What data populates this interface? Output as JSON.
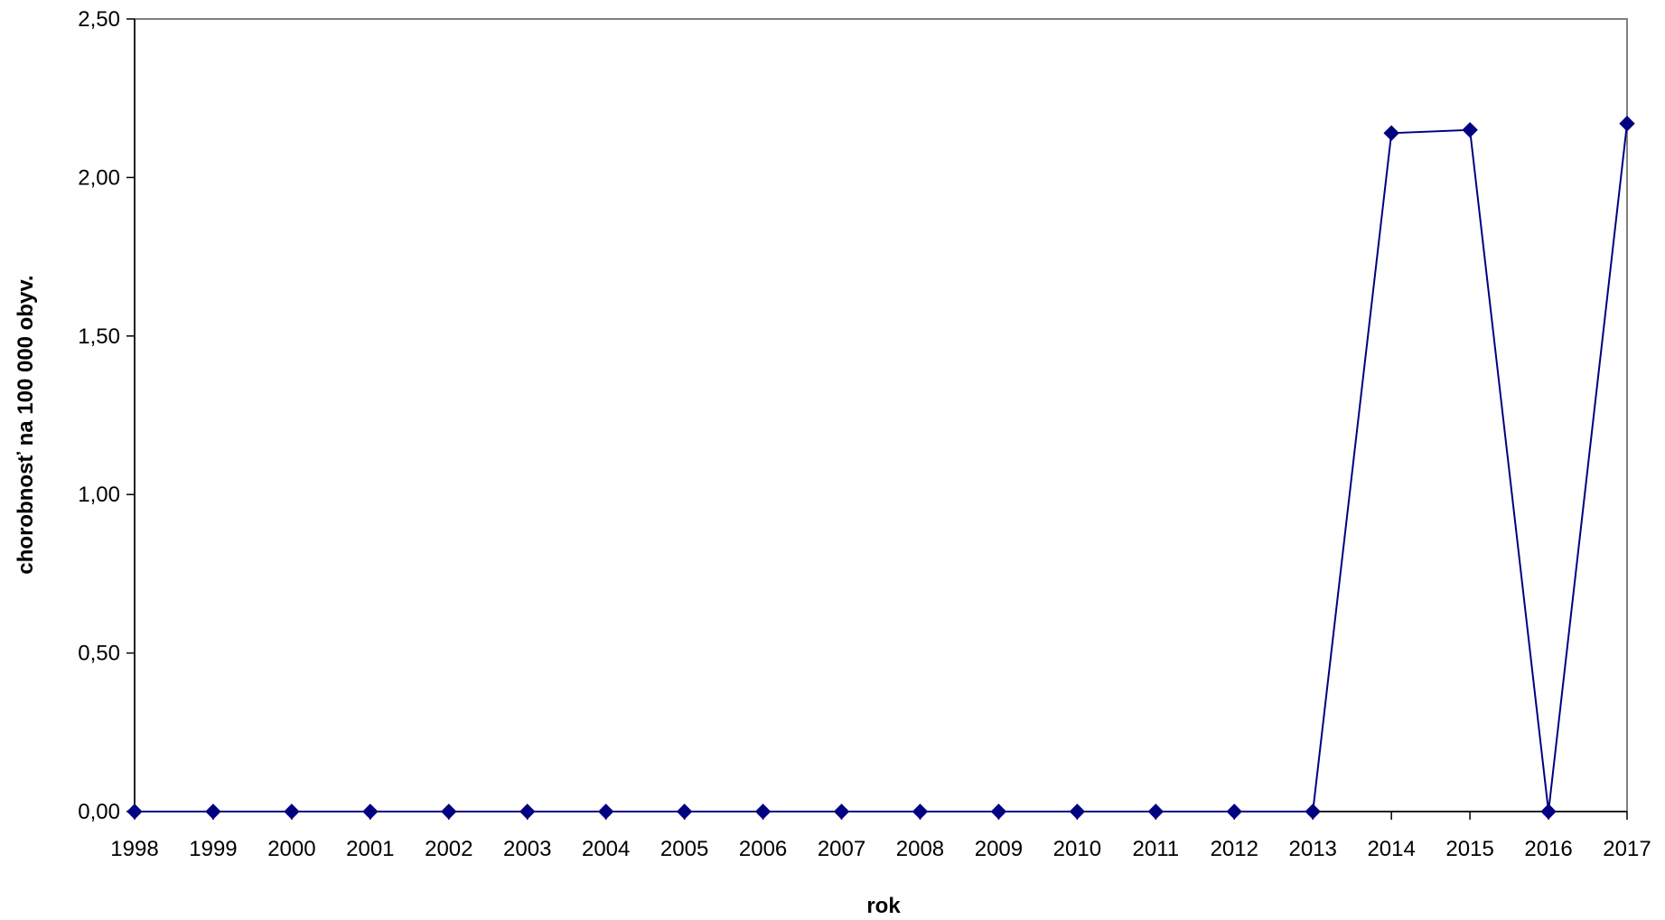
{
  "chart_data": {
    "type": "line",
    "x": [
      "1998",
      "1999",
      "2000",
      "2001",
      "2002",
      "2003",
      "2004",
      "2005",
      "2006",
      "2007",
      "2008",
      "2009",
      "2010",
      "2011",
      "2012",
      "2013",
      "2014",
      "2015",
      "2016",
      "2017"
    ],
    "series": [
      {
        "values": [
          0,
          0,
          0,
          0,
          0,
          0,
          0,
          0,
          0,
          0,
          0,
          0,
          0,
          0,
          0,
          0,
          2.14,
          2.15,
          0,
          2.17
        ]
      }
    ],
    "xlabel": "rok",
    "ylabel": "chorobnosť na 100 000 obyv.",
    "ylim": [
      0,
      2.5
    ],
    "yticks": [
      "0,00",
      "0,50",
      "1,00",
      "1,50",
      "2,00",
      "2,50"
    ],
    "grid": false,
    "legend": "none",
    "line_color": "#000080",
    "axis_color": "#808080"
  }
}
